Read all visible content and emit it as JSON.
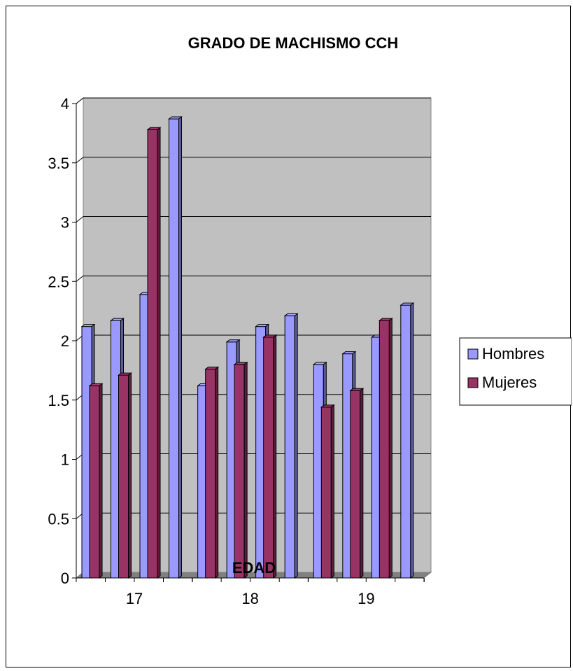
{
  "chart_data": {
    "type": "bar",
    "title": "GRADO DE MACHISMO CCH",
    "xlabel": "EDAD",
    "ylabel": "",
    "ylim": [
      0,
      4
    ],
    "yticks": [
      "0",
      "0.5",
      "1",
      "1.5",
      "2",
      "2.5",
      "3",
      "3.5",
      "4"
    ],
    "group_labels": [
      "17",
      "18",
      "19"
    ],
    "groups": [
      {
        "label": "17",
        "pairs": [
          [
            2.12,
            1.62
          ],
          [
            2.17,
            1.71
          ],
          [
            2.39,
            3.78
          ],
          [
            3.87,
            null
          ]
        ]
      },
      {
        "label": "18",
        "pairs": [
          [
            1.62,
            1.76
          ],
          [
            1.99,
            1.8
          ],
          [
            2.12,
            2.03
          ],
          [
            2.21,
            null
          ]
        ]
      },
      {
        "label": "19",
        "pairs": [
          [
            1.8,
            1.44
          ],
          [
            1.89,
            1.58
          ],
          [
            2.03,
            2.17
          ],
          [
            2.3,
            null
          ]
        ]
      }
    ],
    "series": [
      {
        "name": "Hombres",
        "color": "#9999ff"
      },
      {
        "name": "Mujeres",
        "color": "#993366"
      }
    ],
    "grid": true,
    "legend_position": "right"
  }
}
